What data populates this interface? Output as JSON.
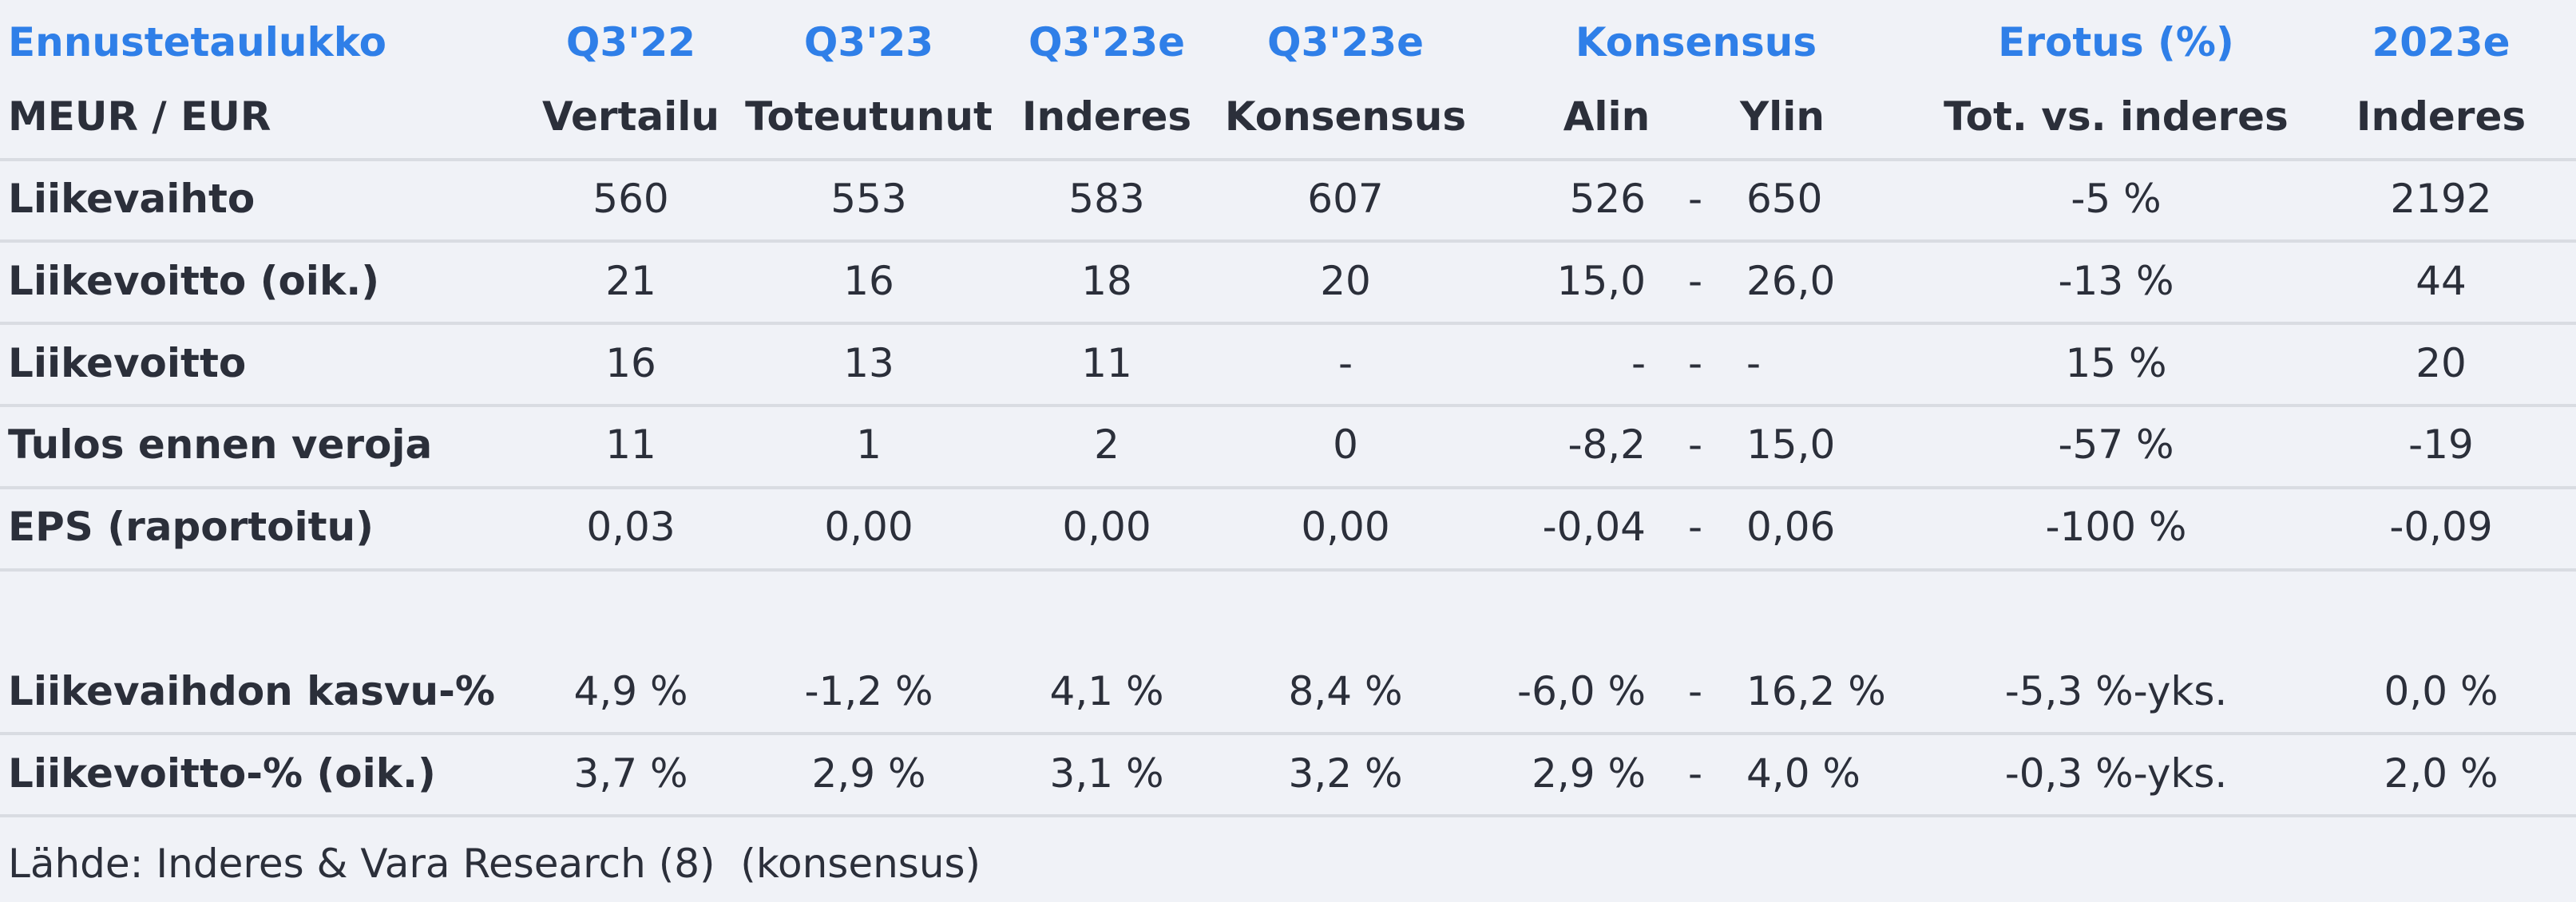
{
  "header": {
    "row1": [
      "Ennustetaulukko",
      "Q3'22",
      "Q3'23",
      "Q3'23e",
      "Q3'23e",
      "Konsensus",
      "Erotus (%)",
      "2023e"
    ],
    "row2": [
      "MEUR / EUR",
      "Vertailu",
      "Toteutunut",
      "Inderes",
      "Konsensus",
      "Alin",
      "Ylin",
      "Tot. vs. inderes",
      "Inderes"
    ]
  },
  "rows": [
    [
      "Liikevaihto",
      "560",
      "553",
      "583",
      "607",
      "526",
      "-",
      "650",
      "-5 %",
      "2192"
    ],
    [
      "Liikevoitto (oik.)",
      "21",
      "16",
      "18",
      "20",
      "15,0",
      "-",
      "26,0",
      "-13 %",
      "44"
    ],
    [
      "Liikevoitto",
      "16",
      "13",
      "11",
      "-",
      "-",
      "-",
      "-",
      "15 %",
      "20"
    ],
    [
      "Tulos ennen veroja",
      "11",
      "1",
      "2",
      "0",
      "-8,2",
      "-",
      "15,0",
      "-57 %",
      "-19"
    ],
    [
      "EPS (raportoitu)",
      "0,03",
      "0,00",
      "0,00",
      "0,00",
      "-0,04",
      "-",
      "0,06",
      "-100 %",
      "-0,09"
    ]
  ],
  "ratio_rows": [
    [
      "Liikevaihdon kasvu-%",
      "4,9 %",
      "-1,2 %",
      "4,1 %",
      "8,4 %",
      "-6,0 %",
      "-",
      "16,2 %",
      "-5,3 %-yks.",
      "0,0 %"
    ],
    [
      "Liikevoitto-% (oik.)",
      "3,7 %",
      "2,9 %",
      "3,1 %",
      "3,2 %",
      "2,9 %",
      "-",
      "4,0 %",
      "-0,3 %-yks.",
      "2,0 %"
    ]
  ],
  "footer": "Lähde: Inderes & Vara Research (8)  (konsensus)"
}
